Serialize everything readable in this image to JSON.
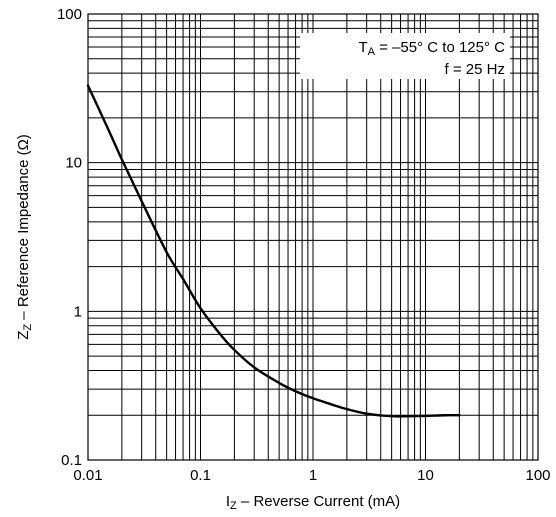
{
  "chart_data": {
    "type": "line",
    "x_scale": "log",
    "y_scale": "log",
    "xlim": [
      0.01,
      100
    ],
    "ylim": [
      0.1,
      100
    ],
    "grid": true,
    "x_ticks": [
      "0.01",
      "0.1",
      "1",
      "10",
      "100"
    ],
    "y_ticks": [
      "0.1",
      "1",
      "10",
      "100"
    ],
    "xlabel": {
      "main": "I",
      "sub": "Z",
      "rest": " – Reverse Current (mA)"
    },
    "ylabel": {
      "main": "Z",
      "sub": "Z",
      "rest": " – Reference Impedance (Ω)"
    },
    "annotations": {
      "line1": {
        "pre": "T",
        "sub": "A",
        "post": " = –55° C to 125° C"
      },
      "line2": "f = 25 Hz"
    },
    "series": [
      {
        "x": [
          0.01,
          0.015,
          0.02,
          0.03,
          0.05,
          0.07,
          0.1,
          0.15,
          0.2,
          0.3,
          0.5,
          0.7,
          1,
          1.5,
          2,
          3,
          5,
          7,
          10,
          15,
          20
        ],
        "y": [
          33,
          17,
          10.5,
          5.5,
          2.5,
          1.65,
          1.05,
          0.7,
          0.55,
          0.42,
          0.33,
          0.29,
          0.26,
          0.235,
          0.22,
          0.205,
          0.197,
          0.197,
          0.198,
          0.2,
          0.2
        ]
      }
    ]
  },
  "colors": {
    "line": "#000000",
    "grid": "#000000",
    "background": "#ffffff"
  }
}
